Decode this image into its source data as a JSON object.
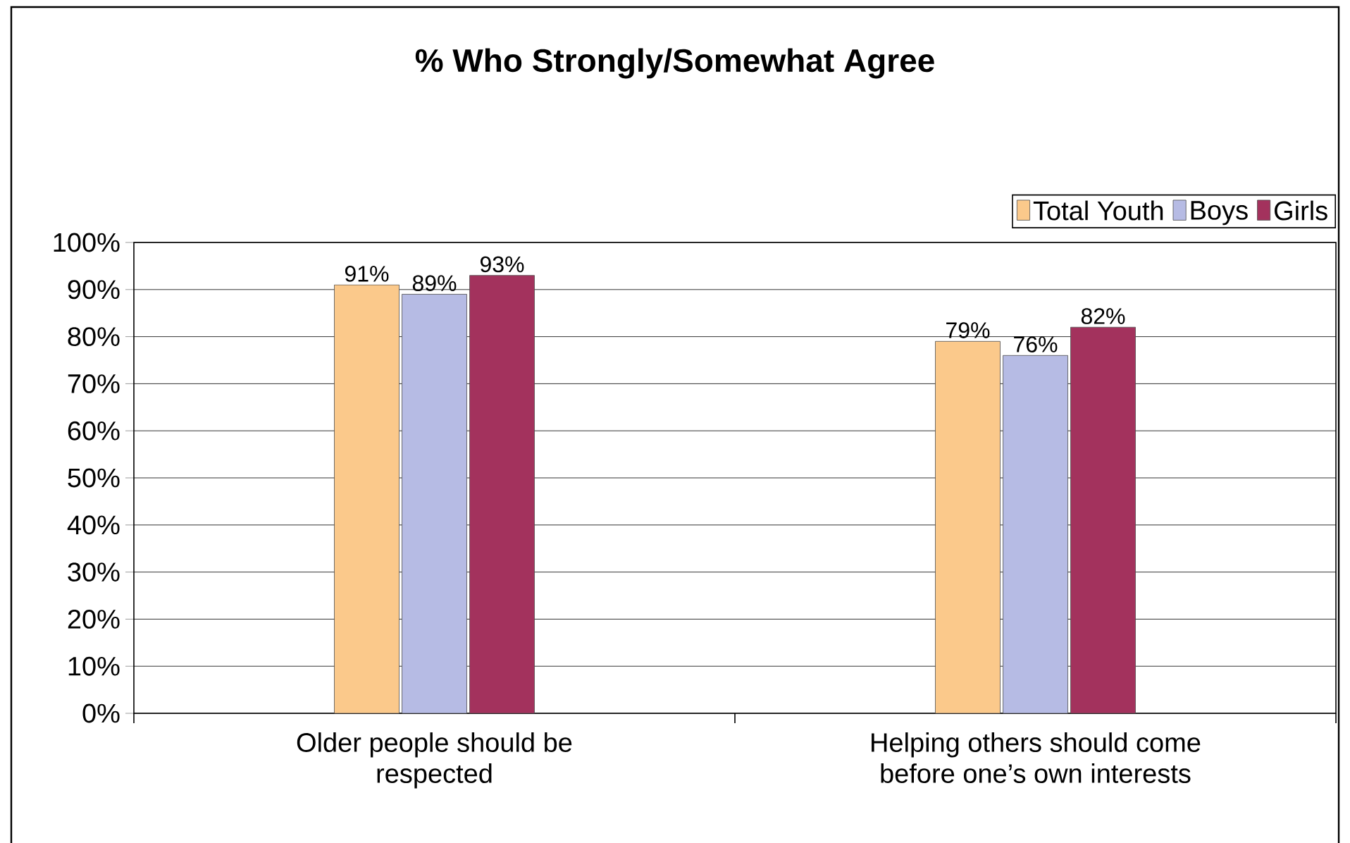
{
  "chart_data": {
    "type": "bar",
    "title": "% Who Strongly/Somewhat Agree",
    "categories": [
      "Older people should be respected",
      "Helping others should come before one’s own interests"
    ],
    "series": [
      {
        "name": "Total Youth",
        "color": "#fbc98b",
        "values": [
          91,
          79
        ],
        "value_labels": [
          "91%",
          "79%"
        ]
      },
      {
        "name": "Boys",
        "color": "#b6bbe4",
        "values": [
          89,
          76
        ],
        "value_labels": [
          "89%",
          "76%"
        ]
      },
      {
        "name": "Girls",
        "color": "#a3325d",
        "values": [
          93,
          82
        ],
        "value_labels": [
          "93%",
          "82%"
        ]
      }
    ],
    "ylim": [
      0,
      100
    ],
    "yticks": [
      {
        "value": 0,
        "label": "0%"
      },
      {
        "value": 10,
        "label": "10%"
      },
      {
        "value": 20,
        "label": "20%"
      },
      {
        "value": 30,
        "label": "30%"
      },
      {
        "value": 40,
        "label": "40%"
      },
      {
        "value": 50,
        "label": "50%"
      },
      {
        "value": 60,
        "label": "60%"
      },
      {
        "value": 70,
        "label": "70%"
      },
      {
        "value": 80,
        "label": "80%"
      },
      {
        "value": 90,
        "label": "90%"
      },
      {
        "value": 100,
        "label": "100%"
      }
    ],
    "grid": "y",
    "legend": "top right"
  }
}
